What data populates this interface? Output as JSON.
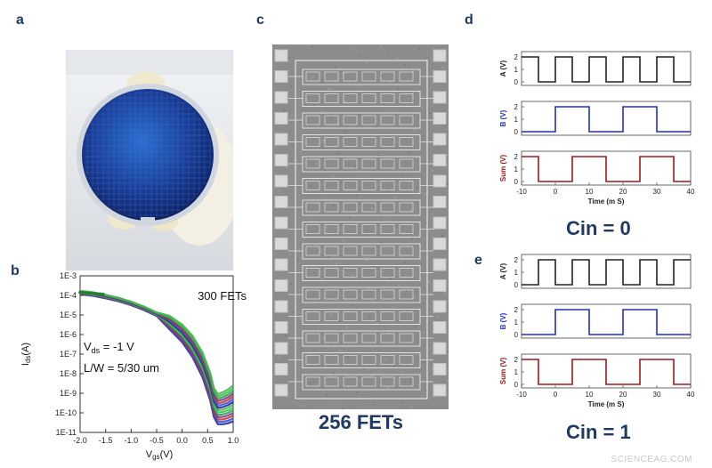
{
  "panels": {
    "a": {
      "letter": "a"
    },
    "b": {
      "letter": "b"
    },
    "c": {
      "letter": "c",
      "caption": "256 FETs"
    },
    "d": {
      "letter": "d",
      "caption": "Cin = 0"
    },
    "e": {
      "letter": "e",
      "caption": "Cin = 1"
    }
  },
  "watermark": "SCIENCEAG.COM",
  "chart_data": [
    {
      "type": "line",
      "panel": "b",
      "xlabel": "Vgs (V)",
      "ylabel": "Ids (A)",
      "xlim": [
        -2.0,
        1.0
      ],
      "ylim_exp": [
        -11,
        -3
      ],
      "log_y": true,
      "xticks": [
        "-2.0",
        "-1.5",
        "-1.0",
        "-0.5",
        "0.0",
        "0.5",
        "1.0"
      ],
      "yticks": [
        "1E-3",
        "1E-4",
        "1E-5",
        "1E-6",
        "1E-7",
        "1E-8",
        "1E-9",
        "1E-10",
        "1E-11"
      ],
      "annotations": {
        "count": "300 FETs",
        "vds_label": "V",
        "vds_sub": "ds",
        "vds_value": " = -1 V",
        "lw": "L/W = 5/30 um"
      },
      "curve_colors": [
        "#1a1aa0",
        "#2b4fd6",
        "#c03030",
        "#7a2a8a",
        "#2a9a4a",
        "#33c04a",
        "#4bb04b"
      ],
      "x": [
        -2.0,
        -1.75,
        -1.5,
        -1.25,
        -1.0,
        -0.75,
        -0.5,
        -0.25,
        0.0,
        0.2,
        0.4,
        0.55,
        0.62,
        0.7,
        0.8,
        0.9,
        1.0
      ],
      "log_ids_center": [
        -3.85,
        -3.92,
        -4.05,
        -4.2,
        -4.4,
        -4.65,
        -4.95,
        -5.35,
        -5.9,
        -6.55,
        -7.5,
        -8.6,
        -9.4,
        -9.75,
        -9.7,
        -9.6,
        -9.45
      ]
    },
    {
      "type": "line",
      "panel": "d",
      "x_label": "Time (m S)",
      "xlim": [
        -10,
        40
      ],
      "xticks": [
        "-10",
        "0",
        "10",
        "20",
        "30",
        "40"
      ],
      "series": [
        {
          "name": "A (V)",
          "color": "#222222",
          "ylim": [
            0,
            2
          ],
          "yticks": [
            "0",
            "1",
            "2"
          ],
          "edges": [
            -5,
            0,
            5,
            10,
            15,
            20,
            25,
            30,
            35
          ],
          "start_high": true
        },
        {
          "name": "B (V)",
          "color": "#1f2fd0",
          "ylim": [
            0,
            2
          ],
          "yticks": [
            "0",
            "1",
            "2"
          ],
          "edges": [
            0,
            10,
            20,
            30
          ],
          "start_high": false
        },
        {
          "name": "Sum (V)",
          "color": "#a01818",
          "ylim": [
            0,
            2
          ],
          "yticks": [
            "0",
            "1",
            "2"
          ],
          "edges": [
            -5,
            5,
            15,
            25,
            35
          ],
          "start_high": true
        }
      ]
    },
    {
      "type": "line",
      "panel": "e",
      "x_label": "Time (m S)",
      "xlim": [
        -10,
        40
      ],
      "xticks": [
        "-10",
        "0",
        "10",
        "20",
        "30",
        "40"
      ],
      "series": [
        {
          "name": "A (V)",
          "color": "#222222",
          "ylim": [
            0,
            2
          ],
          "yticks": [
            "0",
            "1",
            "2"
          ],
          "edges": [
            -5,
            0,
            5,
            10,
            15,
            20,
            25,
            30,
            35
          ],
          "start_high": false
        },
        {
          "name": "B (V)",
          "color": "#1f2fd0",
          "ylim": [
            0,
            2
          ],
          "yticks": [
            "0",
            "1",
            "2"
          ],
          "edges": [
            0,
            10,
            20,
            30
          ],
          "start_high": false
        },
        {
          "name": "Sum (V)",
          "color": "#a01818",
          "ylim": [
            0,
            2
          ],
          "yticks": [
            "0",
            "1",
            "2"
          ],
          "edges": [
            -5,
            5,
            15,
            25,
            35
          ],
          "start_high": true
        }
      ]
    }
  ]
}
